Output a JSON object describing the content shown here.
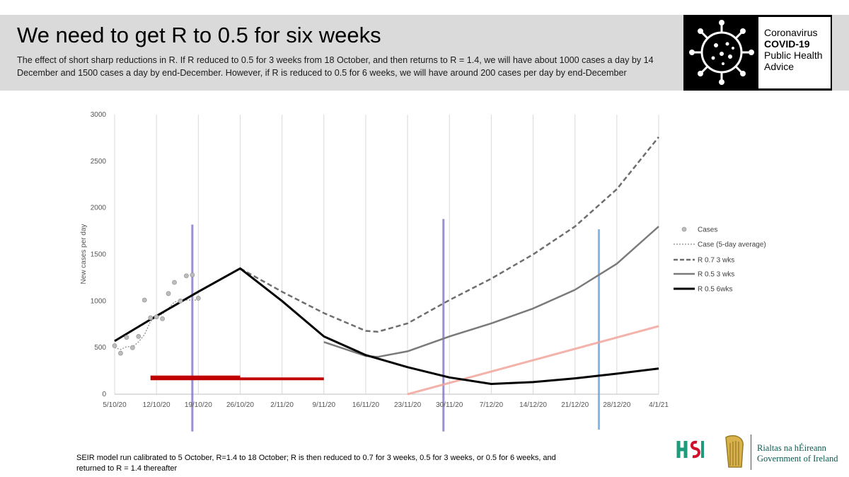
{
  "header": {
    "title": "We need to get R to 0.5 for six weeks",
    "subtitle": "The effect of short sharp reductions in R. If R reduced to 0.5 for 3 weeks from 18 October, and then returns to R = 1.4, we will have about 1000 cases a day by  14 December and 1500 cases a day by end-December.  However, if R is reduced to 0.5 for 6 weeks, we will have around 200 cases per day by end-December"
  },
  "logo": {
    "line1": "Coronavirus",
    "line2": "COVID-19",
    "line3": "Public Health",
    "line4": "Advice"
  },
  "footer": {
    "note": "SEIR model run calibrated to 5 October, R=1.4 to 18 October; R is then reduced to 0.7 for 3 weeks, 0.5 for 3 weeks, or 0.5 for 6 weeks, and returned to R = 1.4 thereafter",
    "gov_line1": "Rialtas na hÉireann",
    "gov_line2": "Government of Ireland"
  },
  "colors": {
    "cases": "#bdbdbd",
    "avg": "#8a8a8a",
    "r07": "#6e6e6e",
    "r05_3": "#7a7a7a",
    "r05_6": "#000000",
    "purple_marker": "#7b68c6",
    "blue_marker": "#5aa0ea",
    "red_bar": "#c00000",
    "pink_line": "#f2a59c"
  },
  "chart_data": {
    "type": "line",
    "xlabel": "",
    "ylabel": "New cases per day",
    "x_ticks": [
      "5/10/20",
      "12/10/20",
      "19/10/20",
      "26/10/20",
      "2/11/20",
      "9/11/20",
      "16/11/20",
      "23/11/20",
      "30/11/20",
      "7/12/20",
      "14/12/20",
      "21/12/20",
      "28/12/20",
      "4/1/21"
    ],
    "y_ticks": [
      "0",
      "500",
      "1000",
      "1500",
      "2000",
      "2500",
      "3000"
    ],
    "ylim": [
      0,
      3000
    ],
    "xlim_days": [
      0,
      91
    ],
    "grid": "vertical",
    "legend_position": "right",
    "legend": [
      "Cases",
      "Case (5-day average)",
      "R 0.7 3 wks",
      "R 0.5 3 wks",
      "R 0.5 6wks"
    ],
    "cases": [
      {
        "x": "5/10/20",
        "y": 520
      },
      {
        "x": "6/10/20",
        "y": 440
      },
      {
        "x": "7/10/20",
        "y": 610
      },
      {
        "x": "8/10/20",
        "y": 500
      },
      {
        "x": "9/10/20",
        "y": 620
      },
      {
        "x": "10/10/20",
        "y": 1010
      },
      {
        "x": "11/10/20",
        "y": 820
      },
      {
        "x": "12/10/20",
        "y": 830
      },
      {
        "x": "13/10/20",
        "y": 810
      },
      {
        "x": "14/10/20",
        "y": 1080
      },
      {
        "x": "15/10/20",
        "y": 1200
      },
      {
        "x": "16/10/20",
        "y": 1000
      },
      {
        "x": "17/10/20",
        "y": 1270
      },
      {
        "x": "18/10/20",
        "y": 1280
      },
      {
        "x": "19/10/20",
        "y": 1030
      }
    ],
    "case_5day_average": [
      {
        "x": "5/10/20",
        "y": 500
      },
      {
        "x": "6/10/20",
        "y": 480
      },
      {
        "x": "7/10/20",
        "y": 510
      },
      {
        "x": "8/10/20",
        "y": 510
      },
      {
        "x": "9/10/20",
        "y": 560
      },
      {
        "x": "10/10/20",
        "y": 640
      },
      {
        "x": "11/10/20",
        "y": 780
      },
      {
        "x": "12/10/20",
        "y": 830
      },
      {
        "x": "13/10/20",
        "y": 860
      },
      {
        "x": "14/10/20",
        "y": 920
      },
      {
        "x": "15/10/20",
        "y": 990
      },
      {
        "x": "16/10/20",
        "y": 1000
      },
      {
        "x": "17/10/20",
        "y": 1010
      },
      {
        "x": "18/10/20",
        "y": 1010
      },
      {
        "x": "19/10/20",
        "y": 1010
      }
    ],
    "series": [
      {
        "name": "R 0.7 3 wks",
        "points": [
          {
            "x": "26/10/20",
            "y": 1350
          },
          {
            "x": "2/11/20",
            "y": 1100
          },
          {
            "x": "9/11/20",
            "y": 870
          },
          {
            "x": "16/11/20",
            "y": 680
          },
          {
            "x": "18/11/20",
            "y": 670
          },
          {
            "x": "23/11/20",
            "y": 760
          },
          {
            "x": "30/11/20",
            "y": 1010
          },
          {
            "x": "7/12/20",
            "y": 1240
          },
          {
            "x": "14/12/20",
            "y": 1500
          },
          {
            "x": "21/12/20",
            "y": 1800
          },
          {
            "x": "28/12/20",
            "y": 2200
          },
          {
            "x": "4/1/21",
            "y": 2760
          }
        ]
      },
      {
        "name": "R 0.5 3 wks",
        "points": [
          {
            "x": "9/11/20",
            "y": 560
          },
          {
            "x": "16/11/20",
            "y": 410
          },
          {
            "x": "18/11/20",
            "y": 400
          },
          {
            "x": "23/11/20",
            "y": 460
          },
          {
            "x": "30/11/20",
            "y": 620
          },
          {
            "x": "7/12/20",
            "y": 760
          },
          {
            "x": "14/12/20",
            "y": 920
          },
          {
            "x": "21/12/20",
            "y": 1120
          },
          {
            "x": "28/12/20",
            "y": 1400
          },
          {
            "x": "4/1/21",
            "y": 1800
          }
        ]
      },
      {
        "name": "R 0.5 6wks",
        "points": [
          {
            "x": "5/10/20",
            "y": 570
          },
          {
            "x": "12/10/20",
            "y": 840
          },
          {
            "x": "19/10/20",
            "y": 1100
          },
          {
            "x": "26/10/20",
            "y": 1350
          },
          {
            "x": "2/11/20",
            "y": 1000
          },
          {
            "x": "9/11/20",
            "y": 620
          },
          {
            "x": "16/11/20",
            "y": 420
          },
          {
            "x": "23/11/20",
            "y": 290
          },
          {
            "x": "30/11/20",
            "y": 180
          },
          {
            "x": "7/12/20",
            "y": 110
          },
          {
            "x": "14/12/20",
            "y": 130
          },
          {
            "x": "21/12/20",
            "y": 170
          },
          {
            "x": "28/12/20",
            "y": 220
          },
          {
            "x": "4/1/21",
            "y": 275
          }
        ]
      }
    ]
  }
}
